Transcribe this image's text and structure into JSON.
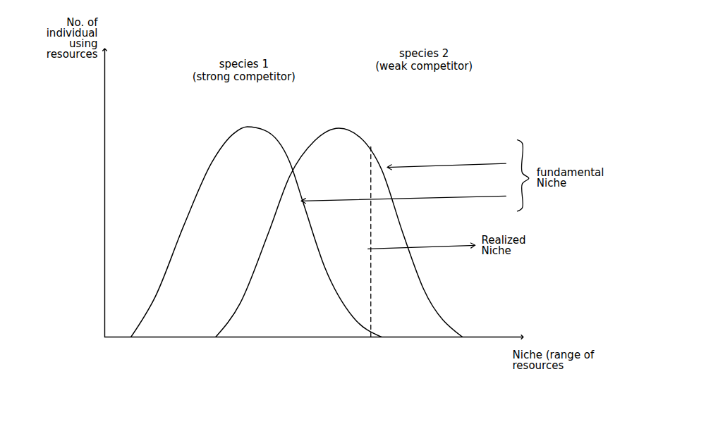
{
  "chart_data": {
    "type": "line",
    "xlabel": "Niche (range of resources",
    "ylabel": "No. of individual using resources",
    "xlim": [
      0,
      102
    ],
    "ylim": [
      0,
      105
    ],
    "xticks": [],
    "yticks": [],
    "tick_labels": false,
    "grid": false,
    "series": [
      {
        "name": "species 1",
        "color": "#000000",
        "x": [
          6.4,
          12.4,
          19.3,
          26.2,
          31.4,
          34.8,
          39.1,
          45.2,
          48.6,
          53.8,
          60.7,
          67.6
        ],
        "values": [
          0,
          14.9,
          40.7,
          63.9,
          74.2,
          76.8,
          75.5,
          63.9,
          48.5,
          25.3,
          7.2,
          0
        ]
      },
      {
        "name": "species 2",
        "color": "#000000",
        "x": [
          27.1,
          33.1,
          40.0,
          45.2,
          51.2,
          57.2,
          62.4,
          67.6,
          72.8,
          77.9,
          87.4
        ],
        "values": [
          0,
          12.4,
          38.1,
          58.8,
          71.6,
          76.3,
          72.9,
          61.3,
          38.1,
          17.5,
          0
        ]
      }
    ],
    "annotations": [
      "(strong competitor)",
      "(weak competitor)",
      "fundamental Niche",
      "Realized Niche"
    ],
    "realized_niche_limit": {
      "x": [
        65,
        65
      ],
      "y": [
        0,
        70
      ]
    }
  }
}
